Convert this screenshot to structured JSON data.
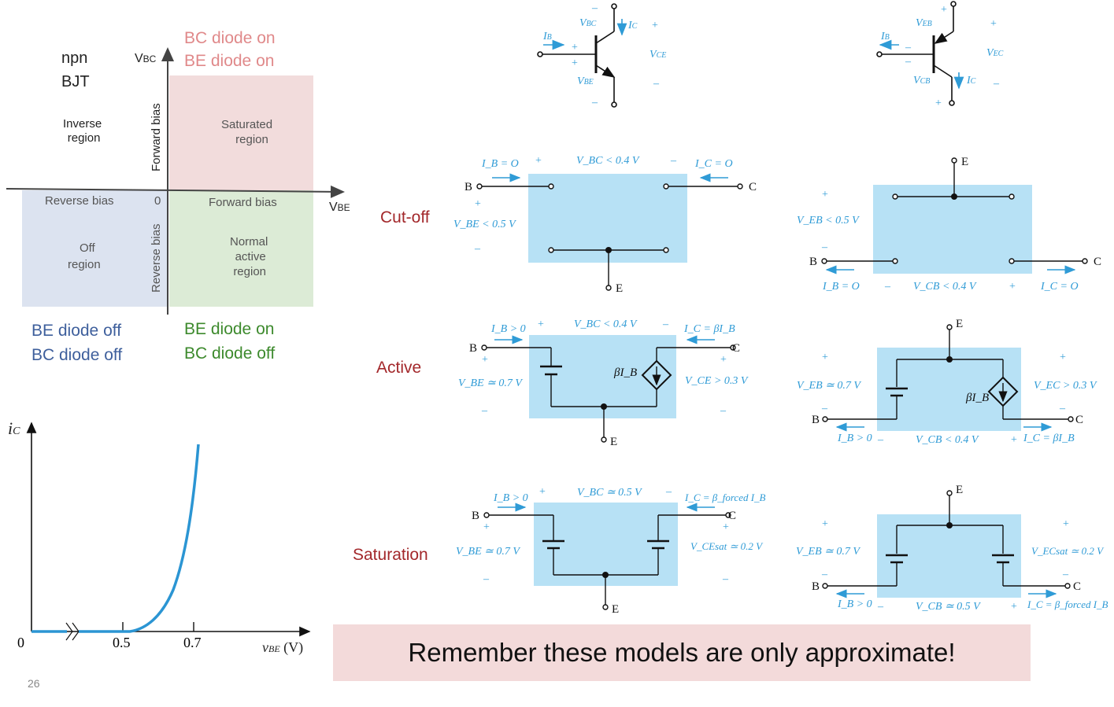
{
  "region_chart": {
    "npn_label": "npn",
    "bjt_label": "BJT",
    "vbc_axis": "V",
    "vbc_sub": "BC",
    "vbe_axis": "V",
    "vbe_sub": "BE",
    "origin": "0",
    "forward_bias_vertical": "Forward bias",
    "reverse_bias_vertical": "Reverse bias",
    "reverse_bias_horizontal": "Reverse bias",
    "forward_bias_horizontal": "Forward bias",
    "inverse_region": [
      "Inverse",
      "region"
    ],
    "saturated_region": [
      "Saturated",
      "region"
    ],
    "off_region": [
      "Off",
      "region"
    ],
    "normal_region": [
      "Normal",
      "active",
      "region"
    ],
    "top_right_caption": [
      "BC diode on",
      "BE diode on"
    ],
    "bottom_left_caption": [
      "BE diode off",
      "BC diode off"
    ],
    "bottom_right_caption": [
      "BE diode on",
      "BC diode off"
    ],
    "colors": {
      "pink": "#f2dcdc",
      "blue": "#dce3f0",
      "green": "#dcebd6"
    }
  },
  "iv_plot": {
    "y_label": "i",
    "y_sub": "C",
    "x_label": "v",
    "x_sub": "BE",
    "x_unit": " (V)",
    "origin": "0",
    "ticks": [
      "0.5",
      "0.7"
    ]
  },
  "modes": {
    "cutoff": "Cut-off",
    "active": "Active",
    "saturation": "Saturation"
  },
  "npn_symbol": {
    "vbc": "V",
    "vbc_sub": "BC",
    "ic": "I",
    "ic_sub": "C",
    "ib": "I",
    "ib_sub": "B",
    "vce": "V",
    "vce_sub": "CE",
    "vbe": "V",
    "vbe_sub": "BE"
  },
  "pnp_symbol": {
    "veb": "V",
    "veb_sub": "EB",
    "ib": "I",
    "ib_sub": "B",
    "vec": "V",
    "vec_sub": "EC",
    "vcb": "V",
    "vcb_sub": "CB",
    "ic": "I",
    "ic_sub": "C"
  },
  "npn_cutoff": {
    "ib": "I_B = O",
    "vbc": "V_BC < 0.4 V",
    "ic": "I_C = O",
    "vbe": "V_BE < 0.5 V",
    "b": "B",
    "c": "C",
    "e": "E"
  },
  "pnp_cutoff": {
    "e": "E",
    "veb": "V_EB < 0.5 V",
    "b": "B",
    "c": "C",
    "ib": "I_B = O",
    "vcb": "V_CB < 0.4 V",
    "ic": "I_C = O"
  },
  "npn_active": {
    "ib": "I_B > 0",
    "vbc": "V_BC < 0.4 V",
    "ic": "I_C = βI_B",
    "vbe": "V_BE ≃ 0.7 V",
    "src": "βI_B",
    "vce": "V_CE > 0.3 V",
    "b": "B",
    "c": "C",
    "e": "E"
  },
  "pnp_active": {
    "e": "E",
    "veb": "V_EB ≃ 0.7 V",
    "src": "βI_B",
    "vec": "V_EC > 0.3 V",
    "b": "B",
    "c": "C",
    "ib": "I_B > 0",
    "vcb": "V_CB < 0.4 V",
    "ic": "I_C = βI_B"
  },
  "npn_sat": {
    "ib": "I_B > 0",
    "vbc": "V_BC ≃ 0.5 V",
    "ic": "I_C = β_forced I_B",
    "vbe": "V_BE ≃ 0.7 V",
    "vce": "V_CEsat ≃ 0.2 V",
    "b": "B",
    "c": "C",
    "e": "E"
  },
  "pnp_sat": {
    "e": "E",
    "veb": "V_EB ≃ 0.7 V",
    "vec": "V_ECsat ≃ 0.2 V",
    "b": "B",
    "c": "C",
    "ib": "I_B > 0",
    "vcb": "V_CB ≃ 0.5 V",
    "ic": "I_C = β_forced I_B"
  },
  "note": "Remember these models are only approximate!",
  "page_number": "26"
}
